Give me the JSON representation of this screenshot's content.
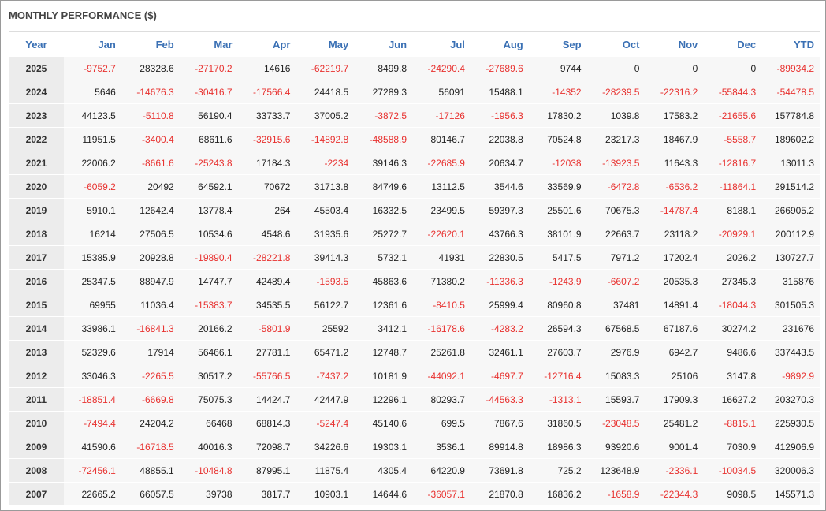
{
  "title": "MONTHLY PERFORMANCE ($)",
  "table": {
    "columns": [
      "Year",
      "Jan",
      "Feb",
      "Mar",
      "Apr",
      "May",
      "Jun",
      "Jul",
      "Aug",
      "Sep",
      "Oct",
      "Nov",
      "Dec",
      "YTD"
    ],
    "rows": [
      [
        "2025",
        "-9752.7",
        "28328.6",
        "-27170.2",
        "14616",
        "-62219.7",
        "8499.8",
        "-24290.4",
        "-27689.6",
        "9744",
        "0",
        "0",
        "0",
        "-89934.2"
      ],
      [
        "2024",
        "5646",
        "-14676.3",
        "-30416.7",
        "-17566.4",
        "24418.5",
        "27289.3",
        "56091",
        "15488.1",
        "-14352",
        "-28239.5",
        "-22316.2",
        "-55844.3",
        "-54478.5"
      ],
      [
        "2023",
        "44123.5",
        "-5110.8",
        "56190.4",
        "33733.7",
        "37005.2",
        "-3872.5",
        "-17126",
        "-1956.3",
        "17830.2",
        "1039.8",
        "17583.2",
        "-21655.6",
        "157784.8"
      ],
      [
        "2022",
        "11951.5",
        "-3400.4",
        "68611.6",
        "-32915.6",
        "-14892.8",
        "-48588.9",
        "80146.7",
        "22038.8",
        "70524.8",
        "23217.3",
        "18467.9",
        "-5558.7",
        "189602.2"
      ],
      [
        "2021",
        "22006.2",
        "-8661.6",
        "-25243.8",
        "17184.3",
        "-2234",
        "39146.3",
        "-22685.9",
        "20634.7",
        "-12038",
        "-13923.5",
        "11643.3",
        "-12816.7",
        "13011.3"
      ],
      [
        "2020",
        "-6059.2",
        "20492",
        "64592.1",
        "70672",
        "31713.8",
        "84749.6",
        "13112.5",
        "3544.6",
        "33569.9",
        "-6472.8",
        "-6536.2",
        "-11864.1",
        "291514.2"
      ],
      [
        "2019",
        "5910.1",
        "12642.4",
        "13778.4",
        "264",
        "45503.4",
        "16332.5",
        "23499.5",
        "59397.3",
        "25501.6",
        "70675.3",
        "-14787.4",
        "8188.1",
        "266905.2"
      ],
      [
        "2018",
        "16214",
        "27506.5",
        "10534.6",
        "4548.6",
        "31935.6",
        "25272.7",
        "-22620.1",
        "43766.3",
        "38101.9",
        "22663.7",
        "23118.2",
        "-20929.1",
        "200112.9"
      ],
      [
        "2017",
        "15385.9",
        "20928.8",
        "-19890.4",
        "-28221.8",
        "39414.3",
        "5732.1",
        "41931",
        "22830.5",
        "5417.5",
        "7971.2",
        "17202.4",
        "2026.2",
        "130727.7"
      ],
      [
        "2016",
        "25347.5",
        "88947.9",
        "14747.7",
        "42489.4",
        "-1593.5",
        "45863.6",
        "71380.2",
        "-11336.3",
        "-1243.9",
        "-6607.2",
        "20535.3",
        "27345.3",
        "315876"
      ],
      [
        "2015",
        "69955",
        "11036.4",
        "-15383.7",
        "34535.5",
        "56122.7",
        "12361.6",
        "-8410.5",
        "25999.4",
        "80960.8",
        "37481",
        "14891.4",
        "-18044.3",
        "301505.3"
      ],
      [
        "2014",
        "33986.1",
        "-16841.3",
        "20166.2",
        "-5801.9",
        "25592",
        "3412.1",
        "-16178.6",
        "-4283.2",
        "26594.3",
        "67568.5",
        "67187.6",
        "30274.2",
        "231676"
      ],
      [
        "2013",
        "52329.6",
        "17914",
        "56466.1",
        "27781.1",
        "65471.2",
        "12748.7",
        "25261.8",
        "32461.1",
        "27603.7",
        "2976.9",
        "6942.7",
        "9486.6",
        "337443.5"
      ],
      [
        "2012",
        "33046.3",
        "-2265.5",
        "30517.2",
        "-55766.5",
        "-7437.2",
        "10181.9",
        "-44092.1",
        "-4697.7",
        "-12716.4",
        "15083.3",
        "25106",
        "3147.8",
        "-9892.9"
      ],
      [
        "2011",
        "-18851.4",
        "-6669.8",
        "75075.3",
        "14424.7",
        "42447.9",
        "12296.1",
        "80293.7",
        "-44563.3",
        "-1313.1",
        "15593.7",
        "17909.3",
        "16627.2",
        "203270.3"
      ],
      [
        "2010",
        "-7494.4",
        "24204.2",
        "66468",
        "68814.3",
        "-5247.4",
        "45140.6",
        "699.5",
        "7867.6",
        "31860.5",
        "-23048.5",
        "25481.2",
        "-8815.1",
        "225930.5"
      ],
      [
        "2009",
        "41590.6",
        "-16718.5",
        "40016.3",
        "72098.7",
        "34226.6",
        "19303.1",
        "3536.1",
        "89914.8",
        "18986.3",
        "93920.6",
        "9001.4",
        "7030.9",
        "412906.9"
      ],
      [
        "2008",
        "-72456.1",
        "48855.1",
        "-10484.8",
        "87995.1",
        "11875.4",
        "4305.4",
        "64220.9",
        "73691.8",
        "725.2",
        "123648.9",
        "-2336.1",
        "-10034.5",
        "320006.3"
      ],
      [
        "2007",
        "22665.2",
        "66057.5",
        "39738",
        "3817.7",
        "10903.1",
        "14644.6",
        "-36057.1",
        "21870.8",
        "16836.2",
        "-1658.9",
        "-22344.3",
        "9098.5",
        "145571.3"
      ]
    ]
  }
}
